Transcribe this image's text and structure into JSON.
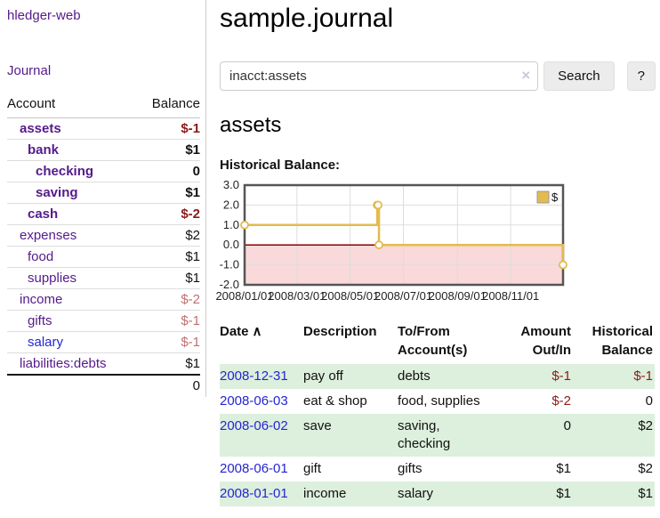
{
  "app": {
    "brand": "hledger-web"
  },
  "colors": {
    "purple": "#551a8b",
    "blue": "#2525d2",
    "darkred": "#8b1a1a",
    "lightred": "#c07070",
    "stripe": "#ddefdd",
    "gold": "#e3bb4e"
  },
  "sidebar": {
    "journal_link": "Journal",
    "header": {
      "account": "Account",
      "balance": "Balance"
    },
    "accounts": [
      {
        "name": "assets",
        "balance": "$-1"
      },
      {
        "name": "bank",
        "balance": "$1"
      },
      {
        "name": "checking",
        "balance": "0"
      },
      {
        "name": "saving",
        "balance": "$1"
      },
      {
        "name": "cash",
        "balance": "$-2"
      },
      {
        "name": "expenses",
        "balance": "$2"
      },
      {
        "name": "food",
        "balance": "$1"
      },
      {
        "name": "supplies",
        "balance": "$1"
      },
      {
        "name": "income",
        "balance": "$-2"
      },
      {
        "name": "gifts",
        "balance": "$-1"
      },
      {
        "name": "salary",
        "balance": "$-1"
      },
      {
        "name": "liabilities:debts",
        "balance": "$1"
      }
    ],
    "total": "0"
  },
  "main": {
    "title": "sample.journal",
    "search": {
      "value": "inacct:assets",
      "clear_icon": "×",
      "button_label": "Search",
      "help_label": "?"
    },
    "account_heading": "assets",
    "chart_title": "Historical Balance:",
    "table": {
      "headers": {
        "date": "Date",
        "sort_icon": "∧",
        "description": "Description",
        "accounts": "To/From Account(s)",
        "amount": "Amount Out/In",
        "balance": "Historical Balance"
      },
      "rows": [
        {
          "date": "2008-12-31",
          "description": "pay off",
          "accounts": "debts",
          "amount": "$-1",
          "amount_neg": true,
          "balance": "$-1",
          "balance_neg": true
        },
        {
          "date": "2008-06-03",
          "description": "eat & shop",
          "accounts": "food, supplies",
          "amount": "$-2",
          "amount_neg": true,
          "balance": "0",
          "balance_neg": false
        },
        {
          "date": "2008-06-02",
          "description": "save",
          "accounts": "saving, checking",
          "amount": "0",
          "amount_neg": false,
          "balance": "$2",
          "balance_neg": false
        },
        {
          "date": "2008-06-01",
          "description": "gift",
          "accounts": "gifts",
          "amount": "$1",
          "amount_neg": false,
          "balance": "$2",
          "balance_neg": false
        },
        {
          "date": "2008-01-01",
          "description": "income",
          "accounts": "salary",
          "amount": "$1",
          "amount_neg": false,
          "balance": "$1",
          "balance_neg": false
        }
      ]
    }
  },
  "chart_data": {
    "type": "line",
    "title": "Historical Balance:",
    "style": "step-after",
    "series": [
      {
        "name": "$",
        "color": "#e3bb4e",
        "x": [
          "2008-01-01",
          "2008-06-01",
          "2008-06-02",
          "2008-06-03",
          "2008-12-31"
        ],
        "y": [
          1,
          2,
          2,
          0,
          -1
        ]
      }
    ],
    "x_range": [
      "2008-01-01",
      "2008-12-31"
    ],
    "ylim": [
      -2.0,
      3.0
    ],
    "y_ticks": [
      3.0,
      2.0,
      1.0,
      0.0,
      -1.0,
      -2.0
    ],
    "x_ticks": [
      {
        "label": "2008/01/01",
        "date": "2008-01-01"
      },
      {
        "label": "2008/03/01",
        "date": "2008-03-01"
      },
      {
        "label": "2008/05/01",
        "date": "2008-05-01"
      },
      {
        "label": "2008/07/01",
        "date": "2008-07-01"
      },
      {
        "label": "2008/09/01",
        "date": "2008-09-01"
      },
      {
        "label": "2008/11/01",
        "date": "2008-11-01"
      }
    ],
    "grid": true,
    "legend_position": "top-right",
    "zero_line_color": "#8b0000",
    "negative_region_color": "#f9d9d9"
  }
}
